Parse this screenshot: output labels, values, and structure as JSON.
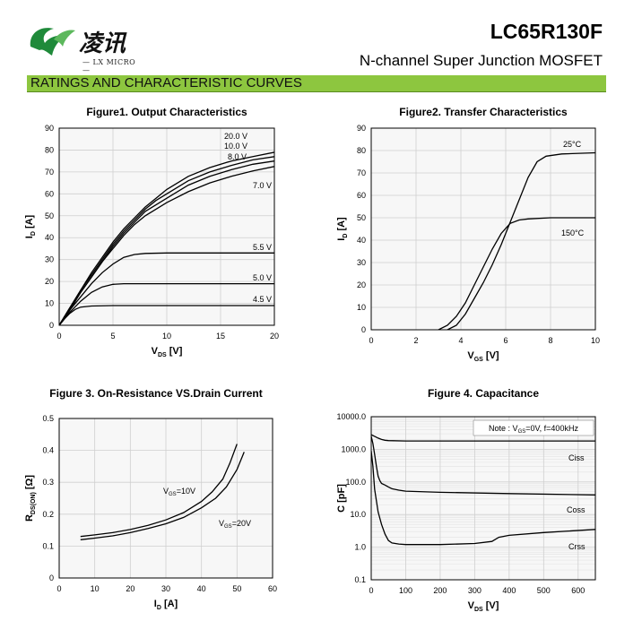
{
  "header": {
    "logo_cn": "凌讯",
    "logo_en": "— LX MICRO —",
    "part_number": "LC65R130F",
    "description": "N-channel Super Junction MOSFET"
  },
  "section_title": "RATINGS AND CHARACTERISTIC CURVES",
  "colors": {
    "section_bar": "#8dc63f",
    "curve": "#000000",
    "grid": "#cccccc"
  },
  "figures": {
    "fig1": {
      "title": "Figure1. Output  Characteristics",
      "xlabel": "V_DS [V]",
      "ylabel": "I_D [A]"
    },
    "fig2": {
      "title": "Figure2. Transfer Characteristics",
      "xlabel": "V_GS [V]",
      "ylabel": "I_D [A]"
    },
    "fig3": {
      "title": "Figure 3.  On-Resistance VS.Drain Current",
      "xlabel": "I_D [A]",
      "ylabel": "R_DS(ON) [Ω]"
    },
    "fig4": {
      "title": "Figure 4.  Capacitance",
      "xlabel": "V_DS [V]",
      "ylabel": "C [pF]",
      "note": "Note : V_GS=0V,  f=400kHz"
    }
  },
  "chart_data": [
    {
      "type": "line",
      "title": "Figure1. Output  Characteristics",
      "xlabel": "V_DS [V]",
      "ylabel": "I_D [A]",
      "xlim": [
        0,
        20
      ],
      "ylim": [
        0,
        90
      ],
      "xticks": [
        0,
        5,
        10,
        15,
        20
      ],
      "yticks": [
        0,
        10,
        20,
        30,
        40,
        50,
        60,
        70,
        80,
        90
      ],
      "grid": true,
      "series": [
        {
          "name": "20.0 V",
          "x": [
            0,
            1,
            2,
            3,
            4,
            5,
            6,
            7,
            8,
            9,
            10,
            12,
            14,
            16,
            18,
            20
          ],
          "y": [
            0,
            8,
            16,
            24,
            31,
            38,
            44,
            49,
            54,
            58,
            62,
            68,
            72,
            75,
            77,
            79
          ]
        },
        {
          "name": "10.0 V",
          "x": [
            0,
            1,
            2,
            3,
            4,
            5,
            6,
            7,
            8,
            9,
            10,
            12,
            14,
            16,
            18,
            20
          ],
          "y": [
            0,
            8,
            16,
            23,
            30,
            37,
            43,
            48,
            53,
            57,
            60,
            66,
            70,
            73,
            75.5,
            77
          ]
        },
        {
          "name": "8.0 V",
          "x": [
            0,
            1,
            2,
            3,
            4,
            5,
            6,
            7,
            8,
            9,
            10,
            12,
            14,
            16,
            18,
            20
          ],
          "y": [
            0,
            8,
            15,
            22,
            29,
            36,
            42,
            47,
            52,
            55,
            58,
            64,
            68,
            71,
            73.5,
            75
          ]
        },
        {
          "name": "7.0 V",
          "x": [
            0,
            1,
            2,
            3,
            4,
            5,
            6,
            7,
            8,
            9,
            10,
            12,
            14,
            16,
            18,
            20
          ],
          "y": [
            0,
            7,
            15,
            22,
            29,
            35,
            41,
            46,
            50,
            53,
            56,
            61,
            65,
            68,
            70.5,
            72.5
          ]
        },
        {
          "name": "5.5 V",
          "x": [
            0,
            1,
            2,
            3,
            4,
            5,
            6,
            7,
            8,
            10,
            12,
            15,
            20
          ],
          "y": [
            0,
            7,
            13,
            19,
            24,
            28,
            31,
            32.3,
            32.8,
            33,
            33,
            33,
            33
          ]
        },
        {
          "name": "5.0 V",
          "x": [
            0,
            1,
            2,
            3,
            4,
            5,
            6,
            8,
            12,
            20
          ],
          "y": [
            0,
            6,
            11,
            15,
            17.5,
            18.7,
            19,
            19,
            19,
            19
          ]
        },
        {
          "name": "4.5 V",
          "x": [
            0,
            0.5,
            1,
            1.5,
            2,
            3,
            5,
            10,
            20
          ],
          "y": [
            0,
            3,
            5.5,
            7.3,
            8.3,
            8.8,
            9,
            9,
            9
          ]
        }
      ]
    },
    {
      "type": "line",
      "title": "Figure2. Transfer Characteristics",
      "xlabel": "V_GS [V]",
      "ylabel": "I_D [A]",
      "xlim": [
        0,
        10
      ],
      "ylim": [
        0,
        90
      ],
      "xticks": [
        0,
        2,
        4,
        6,
        8,
        10
      ],
      "yticks": [
        0,
        10,
        20,
        30,
        40,
        50,
        60,
        70,
        80,
        90
      ],
      "grid": true,
      "series": [
        {
          "name": "25°C",
          "x": [
            3.4,
            3.8,
            4.2,
            4.6,
            5.0,
            5.4,
            5.8,
            6.2,
            6.6,
            7.0,
            7.4,
            7.8,
            8.5,
            10
          ],
          "y": [
            0,
            2,
            7,
            14,
            21,
            29,
            38,
            48,
            58,
            68,
            75,
            77.5,
            78.5,
            79
          ]
        },
        {
          "name": "150°C",
          "x": [
            3.0,
            3.4,
            3.8,
            4.2,
            4.6,
            5.0,
            5.4,
            5.8,
            6.2,
            6.6,
            7.0,
            8,
            10
          ],
          "y": [
            0,
            2,
            6,
            12,
            20,
            28,
            36,
            43,
            47.5,
            49,
            49.5,
            50,
            50
          ]
        }
      ]
    },
    {
      "type": "line",
      "title": "Figure 3.  On-Resistance VS.Drain Current",
      "xlabel": "I_D [A]",
      "ylabel": "R_DS(ON) [Ω]",
      "xlim": [
        0,
        60
      ],
      "ylim": [
        0,
        0.5
      ],
      "xticks": [
        0,
        10,
        20,
        30,
        40,
        50,
        60
      ],
      "yticks": [
        0,
        0.1,
        0.2,
        0.3,
        0.4,
        0.5
      ],
      "grid": true,
      "series": [
        {
          "name": "V_GS=10V",
          "x": [
            6,
            10,
            15,
            20,
            25,
            30,
            35,
            40,
            43,
            46,
            48,
            50
          ],
          "y": [
            0.13,
            0.135,
            0.142,
            0.152,
            0.165,
            0.182,
            0.205,
            0.24,
            0.27,
            0.31,
            0.36,
            0.42
          ]
        },
        {
          "name": "V_GS=20V",
          "x": [
            6,
            10,
            15,
            20,
            25,
            30,
            35,
            40,
            44,
            47,
            50,
            52
          ],
          "y": [
            0.12,
            0.125,
            0.132,
            0.142,
            0.155,
            0.17,
            0.19,
            0.22,
            0.25,
            0.285,
            0.34,
            0.395
          ]
        }
      ]
    },
    {
      "type": "line",
      "title": "Figure 4.  Capacitance",
      "xlabel": "V_DS [V]",
      "ylabel": "C [pF]",
      "xlim": [
        0,
        650
      ],
      "ylim": [
        0.1,
        10000
      ],
      "yscale": "log",
      "xticks": [
        0,
        100,
        200,
        300,
        400,
        500,
        600
      ],
      "yticks": [
        0.1,
        1.0,
        10.0,
        100.0,
        1000.0,
        10000.0
      ],
      "ytick_labels": [
        "0.1",
        "1.0",
        "10.0",
        "100.0",
        "1000.0",
        "10000.0"
      ],
      "grid": true,
      "series": [
        {
          "name": "Ciss",
          "x": [
            0,
            10,
            20,
            30,
            40,
            50,
            100,
            200,
            400,
            650
          ],
          "y": [
            2800,
            2500,
            2200,
            2000,
            1900,
            1850,
            1800,
            1800,
            1800,
            1800
          ]
        },
        {
          "name": "Coss",
          "x": [
            0,
            5,
            10,
            15,
            20,
            25,
            30,
            40,
            50,
            60,
            80,
            100,
            200,
            400,
            650
          ],
          "y": [
            2500,
            1500,
            700,
            300,
            150,
            110,
            90,
            80,
            70,
            62,
            56,
            52,
            48,
            44,
            40
          ]
        },
        {
          "name": "Crss",
          "x": [
            0,
            5,
            10,
            20,
            30,
            40,
            50,
            60,
            80,
            100,
            200,
            300,
            350,
            370,
            400,
            500,
            650
          ],
          "y": [
            900,
            300,
            60,
            12,
            5,
            2.5,
            1.6,
            1.35,
            1.25,
            1.2,
            1.2,
            1.3,
            1.5,
            2.0,
            2.3,
            2.8,
            3.5
          ]
        }
      ]
    }
  ]
}
